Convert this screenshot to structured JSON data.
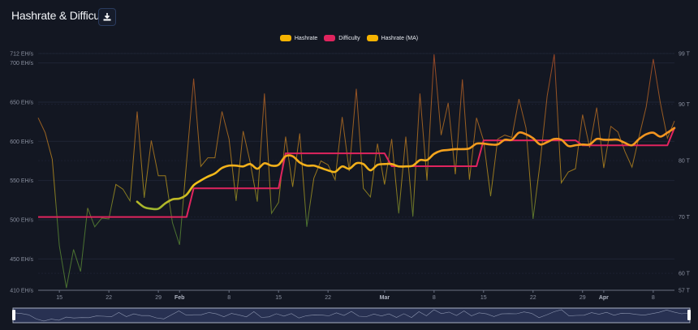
{
  "header": {
    "title": "Hashrate & Difficulty",
    "download_icon": "download-icon"
  },
  "colors": {
    "background": "#131722",
    "hashrate": "#f5b301",
    "difficulty": "#e0245e",
    "hashrate_ma": "#f5b301",
    "high": "#e8622a",
    "mid": "#f2c218",
    "low": "#6fae3a"
  },
  "chart_data": {
    "type": "line",
    "title": "Hashrate & Difficulty",
    "legend": {
      "placement": "top-center",
      "entries": [
        "Hashrate",
        "Difficulty",
        "Hashrate (MA)"
      ]
    },
    "grid": true,
    "x_ticks": [
      "15",
      "22",
      "29",
      "Feb",
      "8",
      "15",
      "22",
      "Mar",
      "8",
      "15",
      "22",
      "29",
      "Apr",
      "8"
    ],
    "y_left": {
      "unit": "EH/s",
      "ylim": [
        410,
        712
      ],
      "ticks": [
        "712 EH/s",
        "700 EH/s",
        "650 EH/s",
        "600 EH/s",
        "550 EH/s",
        "500 EH/s",
        "450 EH/s",
        "410 EH/s"
      ],
      "tick_values": [
        712,
        700,
        650,
        600,
        550,
        500,
        450,
        410
      ]
    },
    "y_right": {
      "unit": "T",
      "ylim": [
        57,
        99
      ],
      "ticks": [
        "99 T",
        "90 T",
        "80 T",
        "70 T",
        "60 T",
        "57 T"
      ],
      "tick_values": [
        99,
        90,
        80,
        70,
        60,
        57
      ]
    },
    "series": [
      {
        "name": "Hashrate",
        "axis": "left",
        "points": [
          [
            "Jan 12",
            630
          ],
          [
            "Jan 13",
            611
          ],
          [
            "Jan 14",
            577
          ],
          [
            "Jan 15",
            467
          ],
          [
            "Jan 16",
            413
          ],
          [
            "Jan 17",
            462
          ],
          [
            "Jan 18",
            434
          ],
          [
            "Jan 19",
            515
          ],
          [
            "Jan 20",
            491
          ],
          [
            "Jan 21",
            502
          ],
          [
            "Jan 22",
            501
          ],
          [
            "Jan 23",
            545
          ],
          [
            "Jan 24",
            539
          ],
          [
            "Jan 25",
            524
          ],
          [
            "Jan 26",
            638
          ],
          [
            "Jan 27",
            528
          ],
          [
            "Jan 28",
            601
          ],
          [
            "Jan 29",
            556
          ],
          [
            "Jan 30",
            556
          ],
          [
            "Jan 31",
            496
          ],
          [
            "Feb 1",
            468
          ],
          [
            "Feb 2",
            574
          ],
          [
            "Feb 3",
            680
          ],
          [
            "Feb 4",
            568
          ],
          [
            "Feb 5",
            579
          ],
          [
            "Feb 6",
            579
          ],
          [
            "Feb 7",
            638
          ],
          [
            "Feb 8",
            603
          ],
          [
            "Feb 9",
            524
          ],
          [
            "Feb 10",
            613
          ],
          [
            "Feb 11",
            573
          ],
          [
            "Feb 12",
            523
          ],
          [
            "Feb 13",
            661
          ],
          [
            "Feb 14",
            508
          ],
          [
            "Feb 15",
            522
          ],
          [
            "Feb 16",
            606
          ],
          [
            "Feb 17",
            542
          ],
          [
            "Feb 18",
            610
          ],
          [
            "Feb 19",
            491
          ],
          [
            "Feb 20",
            553
          ],
          [
            "Feb 21",
            575
          ],
          [
            "Feb 22",
            570
          ],
          [
            "Feb 23",
            551
          ],
          [
            "Feb 24",
            631
          ],
          [
            "Feb 25",
            562
          ],
          [
            "Feb 26",
            667
          ],
          [
            "Feb 27",
            540
          ],
          [
            "Feb 28",
            529
          ],
          [
            "Feb 29",
            597
          ],
          [
            "Mar 1",
            545
          ],
          [
            "Mar 2",
            603
          ],
          [
            "Mar 3",
            508
          ],
          [
            "Mar 4",
            606
          ],
          [
            "Mar 5",
            504
          ],
          [
            "Mar 6",
            661
          ],
          [
            "Mar 7",
            550
          ],
          [
            "Mar 8",
            711
          ],
          [
            "Mar 9",
            608
          ],
          [
            "Mar 10",
            649
          ],
          [
            "Mar 11",
            558
          ],
          [
            "Mar 12",
            679
          ],
          [
            "Mar 13",
            551
          ],
          [
            "Mar 14",
            630
          ],
          [
            "Mar 15",
            601
          ],
          [
            "Mar 16",
            530
          ],
          [
            "Mar 17",
            603
          ],
          [
            "Mar 18",
            608
          ],
          [
            "Mar 19",
            605
          ],
          [
            "Mar 20",
            654
          ],
          [
            "Mar 21",
            617
          ],
          [
            "Mar 22",
            501
          ],
          [
            "Mar 23",
            573
          ],
          [
            "Mar 24",
            658
          ],
          [
            "Mar 25",
            711
          ],
          [
            "Mar 26",
            547
          ],
          [
            "Mar 27",
            561
          ],
          [
            "Mar 28",
            565
          ],
          [
            "Mar 29",
            634
          ],
          [
            "Mar 30",
            592
          ],
          [
            "Mar 31",
            643
          ],
          [
            "Apr 1",
            566
          ],
          [
            "Apr 2",
            619
          ],
          [
            "Apr 3",
            612
          ],
          [
            "Apr 4",
            587
          ],
          [
            "Apr 5",
            567
          ],
          [
            "Apr 6",
            606
          ],
          [
            "Apr 7",
            644
          ],
          [
            "Apr 8",
            705
          ],
          [
            "Apr 9",
            649
          ],
          [
            "Apr 10",
            604
          ],
          [
            "Apr 11",
            626
          ]
        ]
      },
      {
        "name": "Difficulty",
        "axis": "right",
        "points": [
          [
            "Jan 12",
            70.0
          ],
          [
            "Feb 2",
            70.0
          ],
          [
            "Feb 3",
            75.1
          ],
          [
            "Feb 15",
            75.1
          ],
          [
            "Feb 16",
            81.3
          ],
          [
            "Mar 1",
            81.3
          ],
          [
            "Mar 2",
            79.0
          ],
          [
            "Mar 14",
            79.0
          ],
          [
            "Mar 15",
            83.6
          ],
          [
            "Mar 28",
            83.6
          ],
          [
            "Mar 29",
            82.7
          ],
          [
            "Apr 10",
            82.7
          ],
          [
            "Apr 11",
            85.8
          ]
        ]
      },
      {
        "name": "Hashrate (MA)",
        "axis": "left",
        "points": [
          [
            "Jan 26",
            523
          ],
          [
            "Jan 27",
            516
          ],
          [
            "Jan 28",
            514
          ],
          [
            "Jan 29",
            514
          ],
          [
            "Jan 30",
            521
          ],
          [
            "Jan 31",
            526
          ],
          [
            "Feb 1",
            527
          ],
          [
            "Feb 2",
            532
          ],
          [
            "Feb 3",
            544
          ],
          [
            "Feb 4",
            550
          ],
          [
            "Feb 5",
            555
          ],
          [
            "Feb 6",
            559
          ],
          [
            "Feb 7",
            566
          ],
          [
            "Feb 8",
            569
          ],
          [
            "Feb 9",
            569
          ],
          [
            "Feb 10",
            568
          ],
          [
            "Feb 11",
            571
          ],
          [
            "Feb 12",
            565
          ],
          [
            "Feb 13",
            572
          ],
          [
            "Feb 14",
            569
          ],
          [
            "Feb 15",
            570
          ],
          [
            "Feb 16",
            581
          ],
          [
            "Feb 17",
            581
          ],
          [
            "Feb 18",
            573
          ],
          [
            "Feb 19",
            569
          ],
          [
            "Feb 20",
            569
          ],
          [
            "Feb 21",
            566
          ],
          [
            "Feb 22",
            563
          ],
          [
            "Feb 23",
            561
          ],
          [
            "Feb 24",
            568
          ],
          [
            "Feb 25",
            565
          ],
          [
            "Feb 26",
            572
          ],
          [
            "Feb 27",
            571
          ],
          [
            "Feb 28",
            563
          ],
          [
            "Feb 29",
            570
          ],
          [
            "Mar 1",
            571
          ],
          [
            "Mar 2",
            571
          ],
          [
            "Mar 3",
            568
          ],
          [
            "Mar 4",
            568
          ],
          [
            "Mar 5",
            569
          ],
          [
            "Mar 6",
            576
          ],
          [
            "Mar 7",
            576
          ],
          [
            "Mar 8",
            584
          ],
          [
            "Mar 9",
            588
          ],
          [
            "Mar 10",
            589
          ],
          [
            "Mar 11",
            590
          ],
          [
            "Mar 12",
            590
          ],
          [
            "Mar 13",
            591
          ],
          [
            "Mar 14",
            597
          ],
          [
            "Mar 15",
            597
          ],
          [
            "Mar 16",
            596
          ],
          [
            "Mar 17",
            596
          ],
          [
            "Mar 18",
            602
          ],
          [
            "Mar 19",
            602
          ],
          [
            "Mar 20",
            611
          ],
          [
            "Mar 21",
            609
          ],
          [
            "Mar 22",
            604
          ],
          [
            "Mar 23",
            596
          ],
          [
            "Mar 24",
            599
          ],
          [
            "Mar 25",
            603
          ],
          [
            "Mar 26",
            602
          ],
          [
            "Mar 27",
            594
          ],
          [
            "Mar 28",
            595
          ],
          [
            "Mar 29",
            596
          ],
          [
            "Mar 30",
            596
          ],
          [
            "Mar 31",
            603
          ],
          [
            "Apr 1",
            602
          ],
          [
            "Apr 2",
            602
          ],
          [
            "Apr 3",
            602
          ],
          [
            "Apr 4",
            598
          ],
          [
            "Apr 5",
            595
          ],
          [
            "Apr 6",
            603
          ],
          [
            "Apr 7",
            609
          ],
          [
            "Apr 8",
            611
          ],
          [
            "Apr 9",
            606
          ],
          [
            "Apr 10",
            611
          ],
          [
            "Apr 11",
            617
          ]
        ]
      }
    ]
  }
}
